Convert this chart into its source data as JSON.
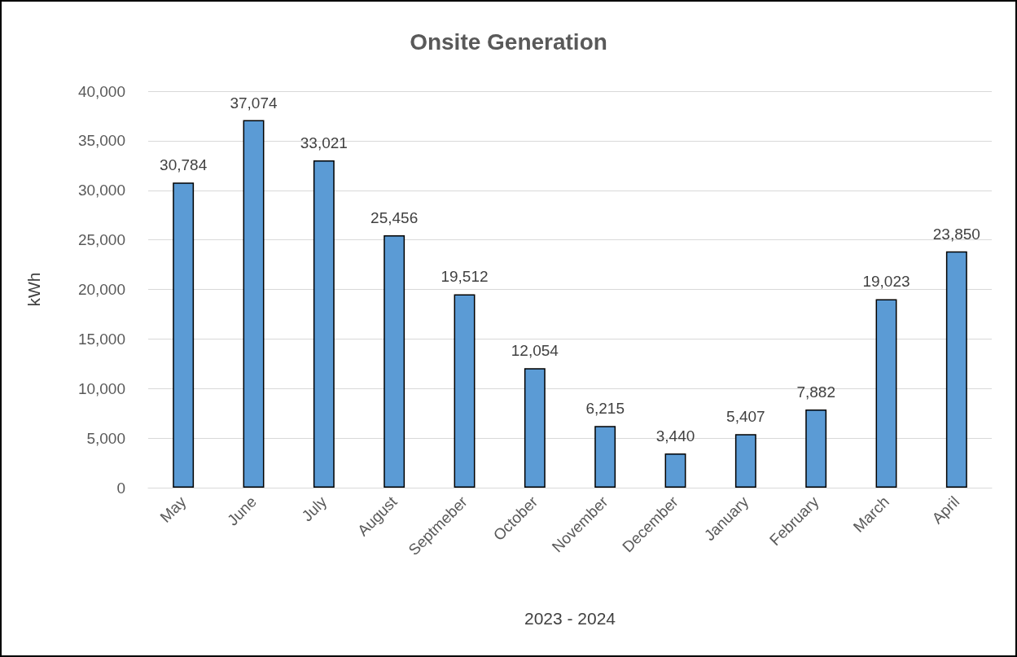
{
  "chart_data": {
    "type": "bar",
    "title": "Onsite Generation",
    "xlabel": "2023 - 2024",
    "ylabel": "kWh",
    "categories": [
      "May",
      "June",
      "July",
      "August",
      "Septmeber",
      "October",
      "November",
      "December",
      "January",
      "February",
      "March",
      "April"
    ],
    "values": [
      30784,
      37074,
      33021,
      25456,
      19512,
      12054,
      6215,
      3440,
      5407,
      7882,
      19023,
      23850
    ],
    "value_labels": [
      "30,784",
      "37,074",
      "33,021",
      "25,456",
      "19,512",
      "12,054",
      "6,215",
      "3,440",
      "5,407",
      "7,882",
      "19,023",
      "23,850"
    ],
    "color": "#5b9bd5",
    "ylim": [
      0,
      40000
    ],
    "yticks": [
      0,
      {
        "value": 5000,
        "label": "5,000"
      },
      {
        "value": 10000,
        "label": "10,000"
      },
      {
        "value": 15000,
        "label": "15,000"
      },
      {
        "value": 20000,
        "label": "20,000"
      },
      {
        "value": 25000,
        "label": "25,000"
      },
      {
        "value": 30000,
        "label": "30,000"
      },
      {
        "value": 35000,
        "label": "35,000"
      },
      {
        "value": 40000,
        "label": "40,000"
      }
    ],
    "grid": "y"
  }
}
